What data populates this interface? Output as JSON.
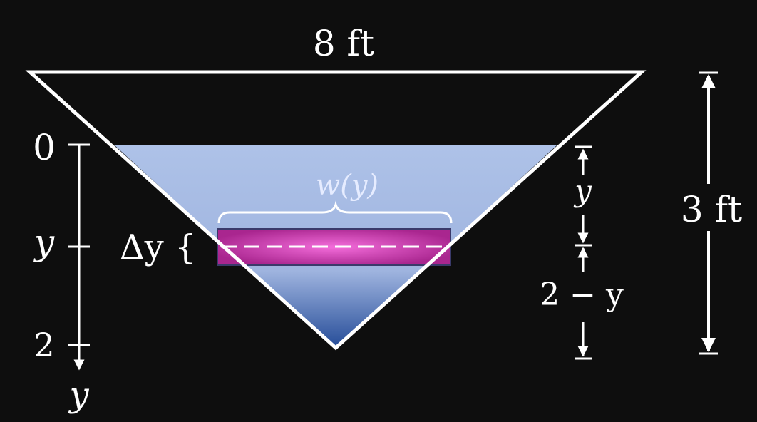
{
  "colors": {
    "background": "#0e0e0e",
    "stroke": "#ffffff",
    "water_light": "#aec2e8",
    "water_dark": "#2a4f99",
    "slab_center": "#f06ad6",
    "slab_edge": "#a8248e",
    "slab_border": "#3a3a6a"
  },
  "labels": {
    "top_width": "8 ft",
    "height": "3 ft",
    "width_function": "w(y)",
    "delta_y": "Δy {",
    "axis_zero": "0",
    "axis_y": "y",
    "axis_two": "2",
    "axis_name": "y",
    "depth_y": "y",
    "depth_rest": "2 − y"
  },
  "icons": [
    "arrow-down-icon",
    "arrow-up-icon",
    "brace-icon"
  ]
}
